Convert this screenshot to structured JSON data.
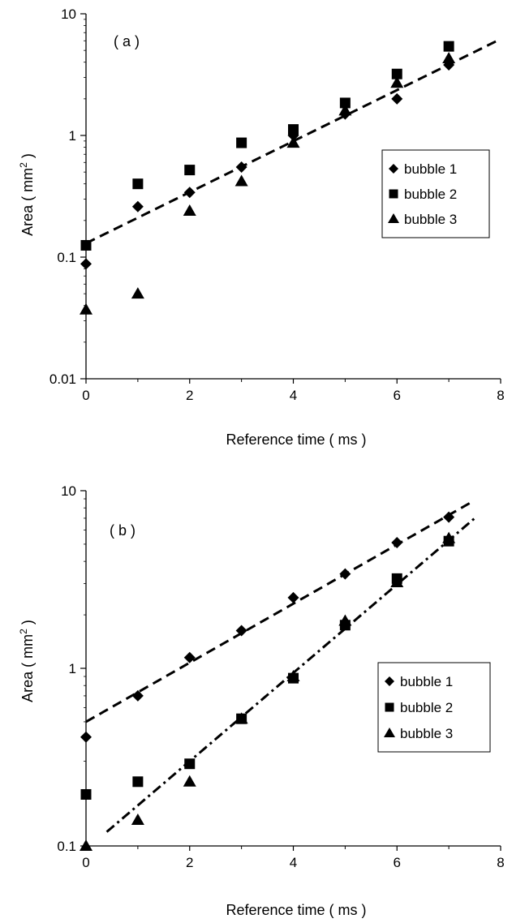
{
  "chart_data": [
    {
      "type": "scatter",
      "panel_label": "( a )",
      "xlabel": "Reference time ( ms )",
      "ylabel_main": "Area ( mm",
      "ylabel_sup": "2",
      "ylabel_end": " )",
      "xlim": [
        0,
        8
      ],
      "ylim": [
        0.01,
        10
      ],
      "yscale": "log",
      "grid": false,
      "legend_position": "right",
      "x_ticks": [
        "0",
        "2",
        "4",
        "6",
        "8"
      ],
      "y_ticks": [
        "0.01",
        "0.1",
        "1",
        "10"
      ],
      "series": [
        {
          "name": "bubble 1",
          "marker": "diamond",
          "x": [
            0,
            1,
            2,
            3,
            4,
            5,
            6,
            7
          ],
          "y": [
            0.088,
            0.26,
            0.34,
            0.55,
            1.0,
            1.5,
            2.0,
            3.8
          ]
        },
        {
          "name": "bubble 2",
          "marker": "square",
          "x": [
            0,
            1,
            2,
            3,
            4,
            5,
            6,
            7
          ],
          "y": [
            0.125,
            0.4,
            0.52,
            0.87,
            1.12,
            1.85,
            3.2,
            5.4
          ]
        },
        {
          "name": "bubble 3",
          "marker": "triangle",
          "x": [
            0,
            1,
            2,
            3,
            4,
            5,
            6,
            7
          ],
          "y": [
            0.037,
            0.05,
            0.24,
            0.42,
            0.87,
            1.6,
            2.7,
            4.3
          ]
        }
      ],
      "fit_lines": [
        {
          "style": "dashed",
          "x": [
            0,
            8
          ],
          "y": [
            0.13,
            6.2
          ]
        }
      ]
    },
    {
      "type": "scatter",
      "panel_label": "( b )",
      "xlabel": "Reference time  ( ms )",
      "ylabel_main": "Area ( mm",
      "ylabel_sup": "2",
      "ylabel_end": " )",
      "xlim": [
        0,
        8
      ],
      "ylim": [
        0.1,
        10
      ],
      "yscale": "log",
      "grid": false,
      "legend_position": "right",
      "x_ticks": [
        "0",
        "2",
        "4",
        "6",
        "8"
      ],
      "y_ticks": [
        "0.1",
        "1",
        "10"
      ],
      "series": [
        {
          "name": "bubble 1",
          "marker": "diamond",
          "x": [
            0,
            1,
            2,
            3,
            4,
            5,
            6,
            7
          ],
          "y": [
            0.41,
            0.7,
            1.15,
            1.63,
            2.5,
            3.4,
            5.1,
            7.1
          ]
        },
        {
          "name": "bubble 2",
          "marker": "square",
          "x": [
            0,
            1,
            2,
            3,
            4,
            5,
            6,
            7
          ],
          "y": [
            0.195,
            0.23,
            0.29,
            0.52,
            0.88,
            1.75,
            3.2,
            5.2
          ]
        },
        {
          "name": "bubble 3",
          "marker": "triangle",
          "x": [
            0,
            1,
            2,
            3,
            4,
            5,
            6,
            7
          ],
          "y": [
            0.1,
            0.14,
            0.23,
            0.52,
            0.9,
            1.85,
            3.05,
            5.4
          ]
        }
      ],
      "fit_lines": [
        {
          "style": "dashed",
          "x": [
            0,
            7.4
          ],
          "y": [
            0.5,
            8.5
          ]
        },
        {
          "style": "dashdot",
          "x": [
            0.4,
            7.5
          ],
          "y": [
            0.12,
            7.0
          ]
        }
      ]
    }
  ]
}
